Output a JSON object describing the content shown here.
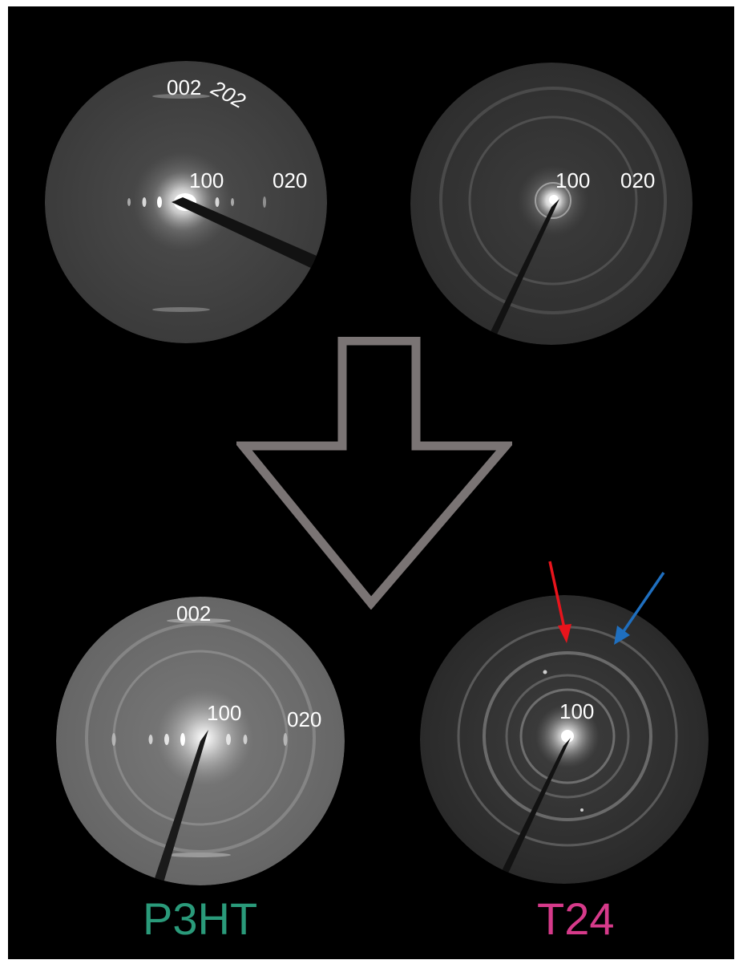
{
  "patterns": {
    "top_left": {
      "labels": {
        "l002": "002",
        "l202": "202",
        "l100": "100",
        "l020": "020"
      }
    },
    "top_right": {
      "labels": {
        "l100": "100",
        "l020": "020"
      }
    },
    "bottom_left": {
      "labels": {
        "l002": "002",
        "l100": "100",
        "l020": "020"
      }
    },
    "bottom_right": {
      "labels": {
        "l100": "100"
      }
    }
  },
  "captions": {
    "left": "P3HT",
    "right": "T24"
  },
  "colors": {
    "background": "#000000",
    "label_text": "#ffffff",
    "caption_left": "#2a9a7a",
    "caption_right": "#d63a8a",
    "big_arrow_outline": "#7a7474",
    "arrow_red": "#e8141c",
    "arrow_blue": "#1f6fbf"
  },
  "icons": {
    "big_arrow": "down-arrow-outline-icon",
    "red_arrow": "arrow-down-left-red-icon",
    "blue_arrow": "arrow-down-left-blue-icon"
  }
}
